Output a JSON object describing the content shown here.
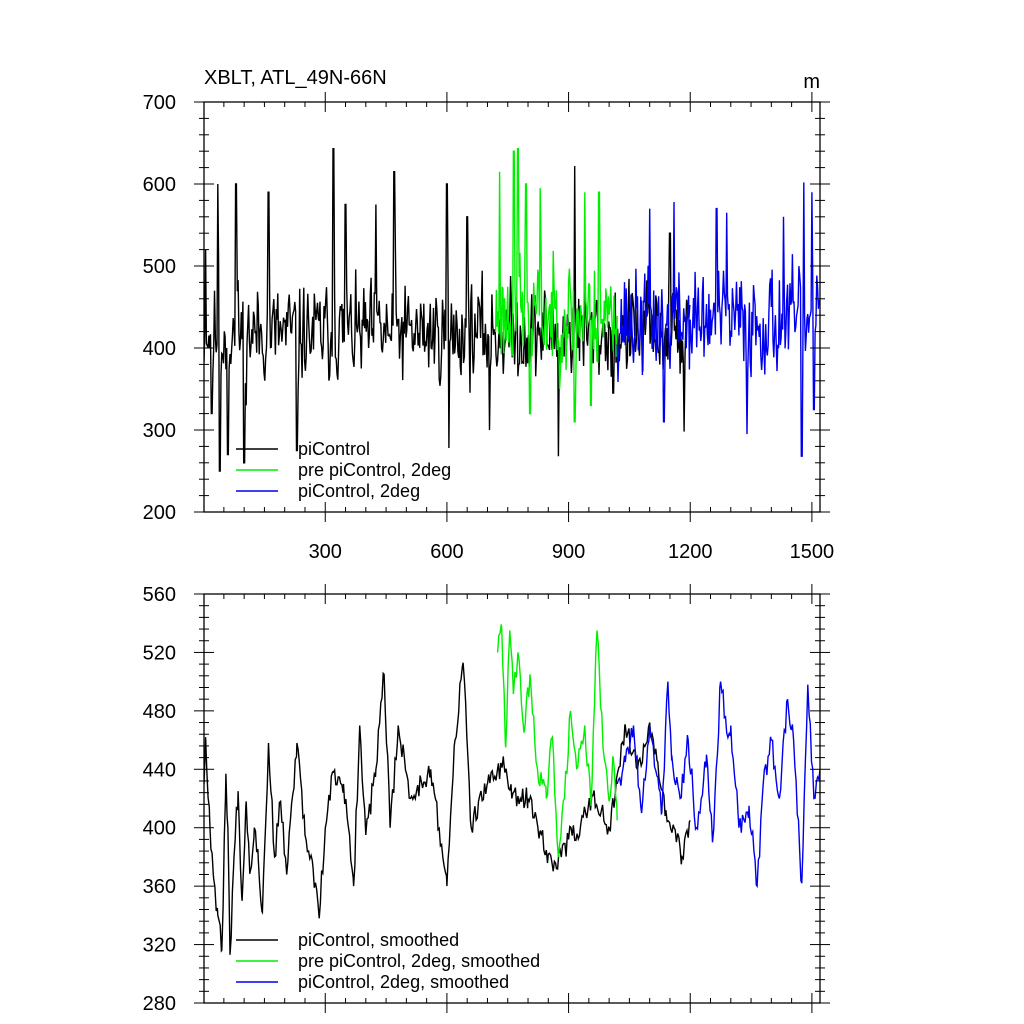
{
  "chart_data": [
    {
      "type": "line",
      "title": "XBLT, ATL_49N-66N",
      "units": "m",
      "xlim": [
        1,
        1520
      ],
      "ylim": [
        200,
        700
      ],
      "xticks": [
        300,
        600,
        900,
        1200,
        1500
      ],
      "xtick_labels": [
        "300",
        "600",
        "900",
        "1200",
        "1500"
      ],
      "yticks": [
        200,
        300,
        400,
        500,
        600,
        700
      ],
      "ytick_labels": [
        "200",
        "300",
        "400",
        "500",
        "600",
        "700"
      ],
      "legend_position": "bottom-left",
      "series": [
        {
          "name": "piControl",
          "color": "#000000",
          "x_range": [
            1,
            1200
          ],
          "mean": 418,
          "spread": 48,
          "seed": 11,
          "peaks": [
            [
              5,
              520
            ],
            [
              35,
              600
            ],
            [
              80,
              600
            ],
            [
              160,
              590
            ],
            [
              320,
              643
            ],
            [
              350,
              575
            ],
            [
              425,
              575
            ],
            [
              470,
              615
            ],
            [
              600,
              600
            ],
            [
              650,
              560
            ],
            [
              915,
              622
            ],
            [
              1150,
              540
            ]
          ],
          "troughs": [
            [
              20,
              320
            ],
            [
              40,
              250
            ],
            [
              60,
              270
            ],
            [
              100,
              260
            ],
            [
              230,
              275
            ],
            [
              605,
              278
            ],
            [
              705,
              300
            ],
            [
              875,
              268
            ],
            [
              1010,
              345
            ],
            [
              1185,
              298
            ]
          ]
        },
        {
          "name": "pre piControl, 2deg",
          "color": "#00ee00",
          "x_range": [
            720,
            1020
          ],
          "mean": 440,
          "spread": 55,
          "seed": 23,
          "peaks": [
            [
              730,
              615
            ],
            [
              765,
              640
            ],
            [
              775,
              643
            ],
            [
              795,
              600
            ],
            [
              830,
              595
            ],
            [
              940,
              590
            ],
            [
              975,
              590
            ]
          ],
          "troughs": [
            [
              805,
              320
            ],
            [
              830,
              288
            ],
            [
              915,
              310
            ],
            [
              955,
              330
            ]
          ]
        },
        {
          "name": "piControl, 2deg",
          "color": "#0000ee",
          "x_range": [
            1020,
            1520
          ],
          "mean": 432,
          "spread": 52,
          "seed": 37,
          "peaks": [
            [
              1100,
              570
            ],
            [
              1160,
              578
            ],
            [
              1265,
              570
            ],
            [
              1290,
              565
            ],
            [
              1430,
              560
            ],
            [
              1480,
              602
            ],
            [
              1500,
              590
            ]
          ],
          "troughs": [
            [
              1135,
              310
            ],
            [
              1340,
              295
            ],
            [
              1475,
              268
            ],
            [
              1505,
              325
            ]
          ]
        }
      ]
    },
    {
      "type": "line",
      "title": "",
      "xlim": [
        1,
        1520
      ],
      "ylim": [
        280,
        560
      ],
      "xticks": [
        300,
        600,
        900,
        1200,
        1500
      ],
      "yticks": [
        280,
        320,
        360,
        400,
        440,
        480,
        520,
        560
      ],
      "ytick_labels": [
        "280",
        "320",
        "360",
        "400",
        "440",
        "480",
        "520",
        "560"
      ],
      "legend_position": "bottom-left",
      "series": [
        {
          "name": "piControl, smoothed",
          "color": "#000000",
          "x_range": [
            1,
            1200
          ],
          "anchors": [
            [
              1,
              430
            ],
            [
              5,
              462
            ],
            [
              15,
              405
            ],
            [
              25,
              365
            ],
            [
              35,
              340
            ],
            [
              45,
              316
            ],
            [
              55,
              437
            ],
            [
              60,
              400
            ],
            [
              65,
              313
            ],
            [
              75,
              380
            ],
            [
              85,
              425
            ],
            [
              95,
              350
            ],
            [
              105,
              418
            ],
            [
              115,
              370
            ],
            [
              125,
              400
            ],
            [
              135,
              378
            ],
            [
              145,
              342
            ],
            [
              160,
              458
            ],
            [
              175,
              380
            ],
            [
              190,
              418
            ],
            [
              205,
              368
            ],
            [
              230,
              458
            ],
            [
              250,
              395
            ],
            [
              270,
              372
            ],
            [
              285,
              338
            ],
            [
              300,
              400
            ],
            [
              320,
              438
            ],
            [
              345,
              430
            ],
            [
              370,
              360
            ],
            [
              385,
              470
            ],
            [
              400,
              395
            ],
            [
              425,
              440
            ],
            [
              445,
              505
            ],
            [
              460,
              400
            ],
            [
              480,
              470
            ],
            [
              510,
              420
            ],
            [
              560,
              440
            ],
            [
              600,
              360
            ],
            [
              620,
              460
            ],
            [
              640,
              513
            ],
            [
              660,
              400
            ],
            [
              700,
              430
            ],
            [
              740,
              445
            ],
            [
              760,
              420
            ],
            [
              800,
              420
            ],
            [
              830,
              398
            ],
            [
              850,
              382
            ],
            [
              870,
              372
            ],
            [
              900,
              392
            ],
            [
              930,
              402
            ],
            [
              960,
              422
            ],
            [
              1000,
              400
            ],
            [
              1040,
              470
            ],
            [
              1070,
              440
            ],
            [
              1100,
              472
            ],
            [
              1120,
              445
            ],
            [
              1140,
              412
            ],
            [
              1160,
              400
            ],
            [
              1180,
              380
            ],
            [
              1200,
              405
            ]
          ]
        },
        {
          "name": "pre piControl, 2deg, smoothed",
          "color": "#00ee00",
          "x_range": [
            720,
            1020
          ],
          "anchors": [
            [
              725,
              520
            ],
            [
              735,
              537
            ],
            [
              745,
              455
            ],
            [
              755,
              535
            ],
            [
              765,
              495
            ],
            [
              775,
              520
            ],
            [
              790,
              465
            ],
            [
              805,
              505
            ],
            [
              820,
              445
            ],
            [
              845,
              420
            ],
            [
              860,
              462
            ],
            [
              875,
              380
            ],
            [
              890,
              420
            ],
            [
              905,
              480
            ],
            [
              920,
              440
            ],
            [
              940,
              470
            ],
            [
              955,
              415
            ],
            [
              970,
              535
            ],
            [
              985,
              455
            ],
            [
              1000,
              418
            ],
            [
              1010,
              448
            ],
            [
              1020,
              405
            ]
          ]
        },
        {
          "name": "piControl, 2deg, smoothed",
          "color": "#0000ee",
          "x_range": [
            1020,
            1520
          ],
          "anchors": [
            [
              1020,
              430
            ],
            [
              1040,
              445
            ],
            [
              1060,
              470
            ],
            [
              1080,
              410
            ],
            [
              1100,
              470
            ],
            [
              1120,
              435
            ],
            [
              1130,
              410
            ],
            [
              1145,
              500
            ],
            [
              1155,
              448
            ],
            [
              1175,
              420
            ],
            [
              1195,
              460
            ],
            [
              1215,
              400
            ],
            [
              1240,
              450
            ],
            [
              1255,
              390
            ],
            [
              1275,
              500
            ],
            [
              1290,
              465
            ],
            [
              1300,
              470
            ],
            [
              1320,
              400
            ],
            [
              1345,
              415
            ],
            [
              1365,
              360
            ],
            [
              1380,
              430
            ],
            [
              1400,
              460
            ],
            [
              1420,
              420
            ],
            [
              1440,
              488
            ],
            [
              1455,
              460
            ],
            [
              1475,
              362
            ],
            [
              1490,
              498
            ],
            [
              1505,
              420
            ],
            [
              1520,
              440
            ]
          ]
        }
      ]
    }
  ]
}
